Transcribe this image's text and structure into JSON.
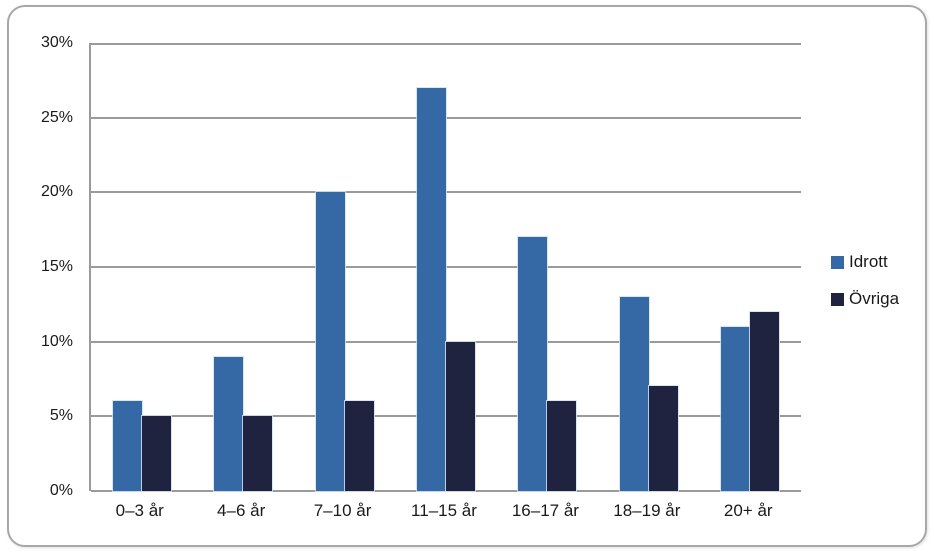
{
  "chart_data": {
    "type": "bar",
    "title": "",
    "categories": [
      "0–3 år",
      "4–6 år",
      "7–10 år",
      "11–15 år",
      "16–17 år",
      "18–19 år",
      "20+ år"
    ],
    "series": [
      {
        "name": "Idrott",
        "color": "#3469A6",
        "values": [
          6,
          9,
          20,
          27,
          17,
          13,
          11
        ]
      },
      {
        "name": "Övriga",
        "color": "#1F2340",
        "values": [
          5,
          5,
          6,
          10,
          6,
          7,
          12
        ]
      }
    ],
    "xlabel": "",
    "ylabel": "",
    "ylim": [
      0,
      30
    ],
    "ytick_step": 5,
    "ytick_labels": [
      "0%",
      "5%",
      "10%",
      "15%",
      "20%",
      "25%",
      "30%"
    ],
    "grid": true,
    "legend_position": "right",
    "colors": {
      "gridline": "#9a9a9a",
      "frame_border": "#a8a8a8",
      "text": "#1a1a1a",
      "background": "#ffffff"
    }
  }
}
